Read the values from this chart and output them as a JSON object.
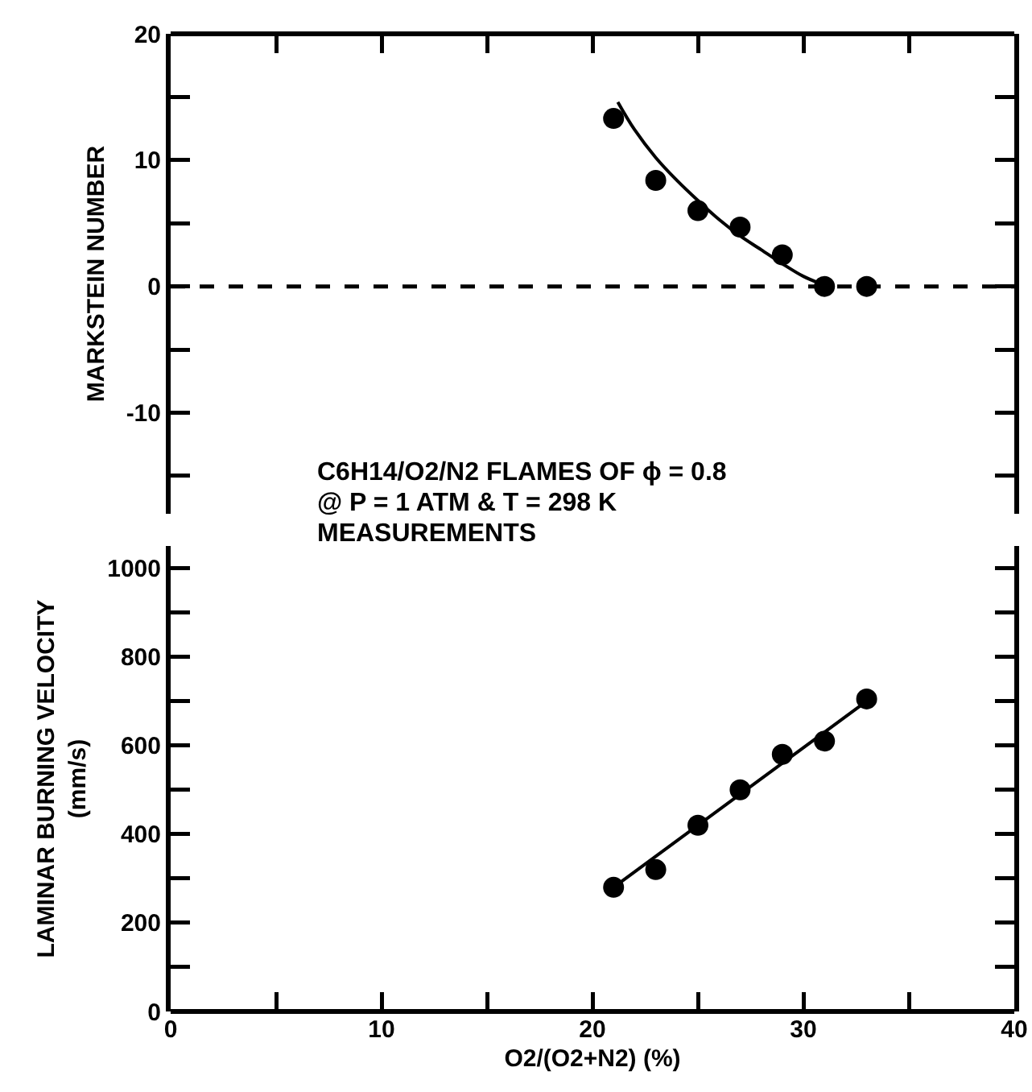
{
  "chart_data": [
    {
      "type": "scatter",
      "ylabel": "MARKSTEIN NUMBER",
      "xlim": [
        0,
        40
      ],
      "xticks": [
        0,
        {
          "value": 5,
          "label": null
        },
        10,
        {
          "value": 15,
          "label": null
        },
        20,
        {
          "value": 25,
          "label": null
        },
        30,
        {
          "value": 35,
          "label": null
        },
        40
      ],
      "ylim": [
        -18,
        20
      ],
      "yticks": [
        {
          "value": -15,
          "label": null
        },
        -10,
        {
          "value": -5,
          "label": null
        },
        0,
        {
          "value": 5,
          "label": null
        },
        10,
        {
          "value": 15,
          "label": null
        },
        20
      ],
      "tick_labels": "y",
      "grid": false,
      "series": [
        {
          "type": "scatter",
          "marker": "circle",
          "color": "#000000",
          "x": [
            21,
            23,
            25,
            27,
            29,
            31,
            33
          ],
          "values": [
            13.3,
            8.4,
            6.0,
            4.7,
            2.5,
            0,
            0
          ]
        },
        {
          "type": "line",
          "color": "#000000",
          "line_style": "solid",
          "x": [
            21.2,
            22,
            23,
            24,
            25,
            26,
            27,
            28,
            29,
            30,
            31
          ],
          "values": [
            14.6,
            12.4,
            10.2,
            8.4,
            6.8,
            5.3,
            4.0,
            2.9,
            1.8,
            0.8,
            0.1
          ]
        }
      ],
      "ref_lines": [
        {
          "axis": "y",
          "value": 0,
          "line_style": "dashed",
          "color": "#000000"
        }
      ]
    },
    {
      "type": "scatter",
      "xlabel": "O2/(O2+N2) (%)",
      "ylabel": "LAMINAR BURNING VELOCITY\n(mm/s)",
      "xlim": [
        0,
        40
      ],
      "xticks": [
        0,
        {
          "value": 5,
          "label": null
        },
        10,
        {
          "value": 15,
          "label": null
        },
        20,
        {
          "value": 25,
          "label": null
        },
        30,
        {
          "value": 35,
          "label": null
        },
        40
      ],
      "ylim": [
        0,
        1050
      ],
      "yticks": [
        0,
        {
          "value": 100,
          "label": null
        },
        200,
        {
          "value": 300,
          "label": null
        },
        400,
        {
          "value": 500,
          "label": null
        },
        600,
        {
          "value": 700,
          "label": null
        },
        800,
        {
          "value": 900,
          "label": null
        },
        1000
      ],
      "grid": false,
      "annotations": [
        "C6H14/O2/N2 FLAMES OF  ϕ = 0.8",
        "@ P = 1 ATM & T = 298 K",
        "MEASUREMENTS"
      ],
      "series": [
        {
          "type": "scatter",
          "marker": "circle",
          "color": "#000000",
          "x": [
            21,
            23,
            25,
            27,
            29,
            31,
            33
          ],
          "values": [
            280,
            320,
            420,
            500,
            580,
            610,
            705
          ]
        },
        {
          "type": "line",
          "color": "#000000",
          "line_style": "solid",
          "x": [
            21,
            33
          ],
          "values": [
            280,
            700
          ]
        }
      ]
    }
  ]
}
